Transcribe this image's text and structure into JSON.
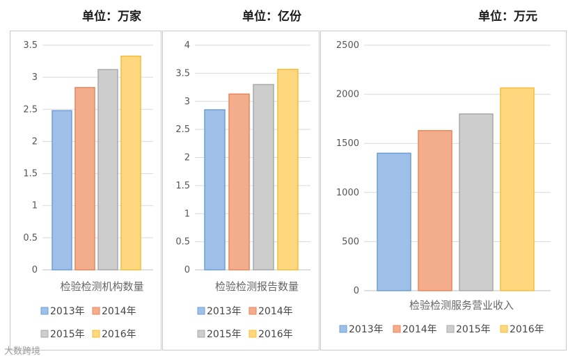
{
  "colors": {
    "2013": {
      "fill": "#9ec0e8",
      "stroke": "#6f9fd6"
    },
    "2014": {
      "fill": "#f4ad8c",
      "stroke": "#e8855a"
    },
    "2015": {
      "fill": "#cdcdcd",
      "stroke": "#a9a9a9"
    },
    "2016": {
      "fill": "#ffd77e",
      "stroke": "#f5bd3c"
    }
  },
  "watermark": "大数跨境",
  "chart_data": [
    {
      "type": "bar",
      "unit_label": "单位：万家",
      "xlabel": "检验检测机构数量",
      "categories": [
        "检验检测机构数量"
      ],
      "ylim": [
        0,
        3.5
      ],
      "yticks": [
        "0",
        "0.5",
        "1",
        "1.5",
        "2",
        "2.5",
        "3",
        "3.5"
      ],
      "series": [
        {
          "name": "2013年",
          "values": [
            2.48
          ]
        },
        {
          "name": "2014年",
          "values": [
            2.84
          ]
        },
        {
          "name": "2015年",
          "values": [
            3.12
          ]
        },
        {
          "name": "2016年",
          "values": [
            3.33
          ]
        }
      ]
    },
    {
      "type": "bar",
      "unit_label": "单位：亿份",
      "xlabel": "检验检测报告数量",
      "categories": [
        "检验检测报告数量"
      ],
      "ylim": [
        0,
        4
      ],
      "yticks": [
        "0",
        "0.5",
        "1",
        "1.5",
        "2",
        "2.5",
        "3",
        "3.5",
        "4"
      ],
      "series": [
        {
          "name": "2013年",
          "values": [
            2.85
          ]
        },
        {
          "name": "2014年",
          "values": [
            3.13
          ]
        },
        {
          "name": "2015年",
          "values": [
            3.3
          ]
        },
        {
          "name": "2016年",
          "values": [
            3.57
          ]
        }
      ]
    },
    {
      "type": "bar",
      "unit_label": "单位：万元",
      "xlabel": "检验检测服务营业收入",
      "categories": [
        "检验检测服务营业收入"
      ],
      "ylim": [
        0,
        2500
      ],
      "yticks": [
        "0",
        "500",
        "1000",
        "1500",
        "2000",
        "2500"
      ],
      "series": [
        {
          "name": "2013年",
          "values": [
            1400
          ]
        },
        {
          "name": "2014年",
          "values": [
            1630
          ]
        },
        {
          "name": "2015年",
          "values": [
            1800
          ]
        },
        {
          "name": "2016年",
          "values": [
            2065
          ]
        }
      ]
    }
  ]
}
